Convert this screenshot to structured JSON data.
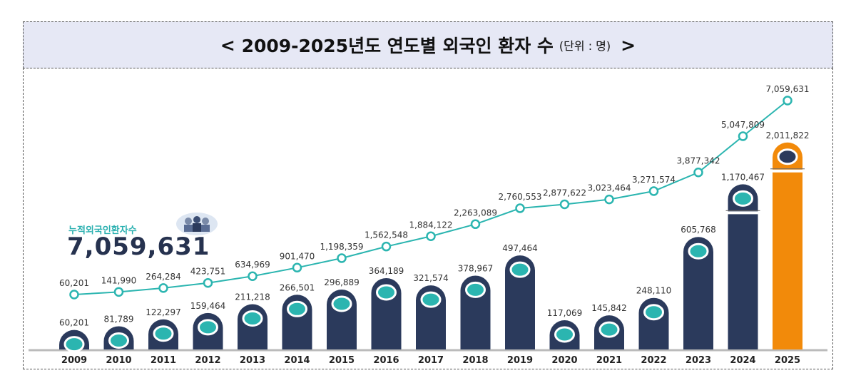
{
  "title": {
    "prefix": "<",
    "main": "2009-2025년도 연도별 외국인 환자 수",
    "unit": "(단위 : 명)",
    "suffix": ">"
  },
  "summary": {
    "label": "누적외국인환자수",
    "value": "7,059,631",
    "icon": "people-icon"
  },
  "colors": {
    "bar": "#2b3a5c",
    "bar_highlight": "#f28a0a",
    "line": "#2bb5b0",
    "axis": "#bbbbbb"
  },
  "chart_data": {
    "type": "bar+line",
    "title": "2009-2025년도 연도별 외국인 환자 수",
    "unit": "(단위 : 명)",
    "categories": [
      "2009",
      "2010",
      "2011",
      "2012",
      "2013",
      "2014",
      "2015",
      "2016",
      "2017",
      "2018",
      "2019",
      "2020",
      "2021",
      "2022",
      "2023",
      "2024",
      "2025"
    ],
    "series": [
      {
        "type": "bar",
        "values": [
          60201,
          81789,
          122297,
          159464,
          211218,
          266501,
          296889,
          364189,
          321574,
          378967,
          497464,
          117069,
          145842,
          248110,
          605768,
          1170467,
          2011822
        ],
        "labels": [
          "60,201",
          "81,789",
          "122,297",
          "159,464",
          "211,218",
          "266,501",
          "296,889",
          "364,189",
          "321,574",
          "378,967",
          "497,464",
          "117,069",
          "145,842",
          "248,110",
          "605,768",
          "1,170,467",
          "2,011,822"
        ],
        "broken_axis_bars": [
          "2024",
          "2025"
        ],
        "highlight": "2025"
      },
      {
        "type": "line",
        "values": [
          60201,
          141990,
          264284,
          423751,
          634969,
          901470,
          1198359,
          1562548,
          1884122,
          2263089,
          2760553,
          2877622,
          3023464,
          3271574,
          3877342,
          5047809,
          7059631
        ],
        "labels": [
          "60,201",
          "141,990",
          "264,284",
          "423,751",
          "634,969",
          "901,470",
          "1,198,359",
          "1,562,548",
          "1,884,122",
          "2,263,089",
          "2,760,553",
          "2,877,622",
          "3,023,464",
          "3,271,574",
          "3,877,342",
          "5,047,809",
          "7,059,631"
        ]
      }
    ],
    "grid": false
  }
}
